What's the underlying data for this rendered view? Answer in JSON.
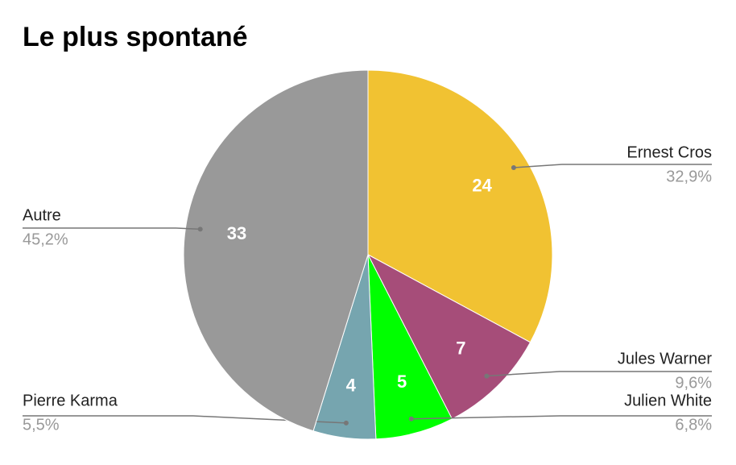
{
  "chart_data": {
    "type": "pie",
    "title": "Le plus spontané",
    "categories": [
      "Ernest Cros",
      "Jules Warner",
      "Julien White",
      "Pierre Karma",
      "Autre"
    ],
    "values": [
      24,
      7,
      5,
      4,
      33
    ],
    "percent_labels": [
      "32,9%",
      "9,6%",
      "6,8%",
      "5,5%",
      "45,2%"
    ],
    "colors": [
      "#f1c232",
      "#a64d79",
      "#00ff00",
      "#76a5af",
      "#999999"
    ]
  }
}
